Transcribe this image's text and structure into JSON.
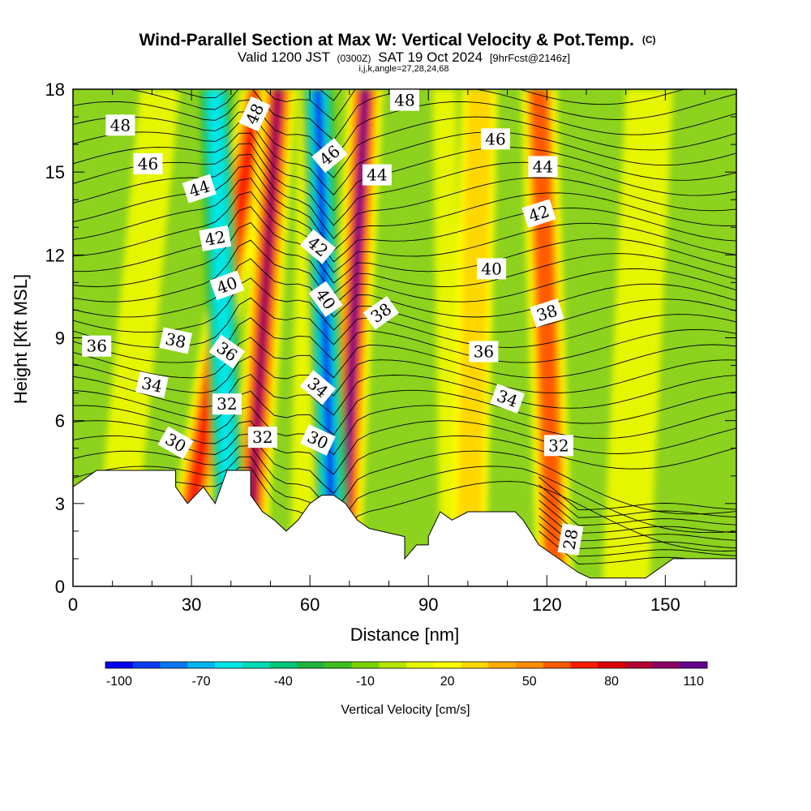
{
  "chart_data": {
    "type": "heatmap",
    "title": "Wind-Parallel Section at Max W: Vertical Velocity & Pot.Temp.",
    "title_mark": "(C)",
    "subtitle_parts": [
      "Valid 1200 JST",
      "(0300Z)",
      "SAT 19 Oct 2024",
      "[9hrFcst@2146z]"
    ],
    "subtitle2": "i,j,k,angle=27,28,24,68",
    "xlabel": "Distance [nm]",
    "ylabel": "Height [Kft MSL]",
    "xlim": [
      0,
      168
    ],
    "ylim": [
      0,
      18
    ],
    "xticks": [
      0,
      30,
      60,
      90,
      120,
      150
    ],
    "yticks": [
      0,
      3,
      6,
      9,
      12,
      15,
      18
    ],
    "colorbar_label": "Vertical Velocity [cm/s]",
    "colorbar_ticks": [
      "-100",
      "-70",
      "-40",
      "-10",
      "20",
      "50",
      "80",
      "110"
    ],
    "colorbar_colors": [
      "#0000ee",
      "#0a3cf5",
      "#0a78f0",
      "#00b4f0",
      "#00e6e6",
      "#00dcb4",
      "#00c878",
      "#1eb43c",
      "#3cbe1e",
      "#78d200",
      "#b4e600",
      "#e6f500",
      "#ffff00",
      "#ffd700",
      "#ffaa00",
      "#ff8c00",
      "#ff5a00",
      "#ff1e00",
      "#dc0000",
      "#b40032",
      "#8c0064",
      "#64008c"
    ],
    "updraft_cores": [
      {
        "x_low": 27,
        "x_high": 47,
        "w_max": 70
      },
      {
        "x_low": 44,
        "x_high": 52,
        "w_max": 100
      },
      {
        "x_low": 68,
        "x_high": 74,
        "w_max": 110
      },
      {
        "x_low": 100,
        "x_high": 103,
        "w_max": 30
      },
      {
        "x_low": 122,
        "x_high": 118,
        "w_max": 55
      }
    ],
    "downdraft_cores": [
      {
        "x_low": 40,
        "x_high": 36,
        "w_min": -60
      },
      {
        "x_low": 66,
        "x_high": 62,
        "w_min": -100
      }
    ],
    "terrain_kft": [
      [
        0,
        3.6
      ],
      [
        3,
        3.9
      ],
      [
        6,
        4.2
      ],
      [
        26,
        4.2
      ],
      [
        26,
        3.6
      ],
      [
        29,
        3.0
      ],
      [
        33,
        3.6
      ],
      [
        36,
        3.0
      ],
      [
        39,
        4.2
      ],
      [
        45,
        4.2
      ],
      [
        45,
        3.3
      ],
      [
        48,
        2.7
      ],
      [
        51,
        2.4
      ],
      [
        54,
        2.0
      ],
      [
        57,
        2.4
      ],
      [
        60,
        3.0
      ],
      [
        63,
        3.3
      ],
      [
        66,
        3.3
      ],
      [
        69,
        3.0
      ],
      [
        72,
        2.4
      ],
      [
        75,
        2.1
      ],
      [
        84,
        1.8
      ],
      [
        84,
        1.0
      ],
      [
        87,
        1.5
      ],
      [
        90,
        1.5
      ],
      [
        90,
        1.8
      ],
      [
        93,
        2.7
      ],
      [
        96,
        2.4
      ],
      [
        100,
        2.7
      ],
      [
        112,
        2.7
      ],
      [
        114,
        2.4
      ],
      [
        118,
        1.5
      ],
      [
        121,
        1.2
      ],
      [
        123,
        1.0
      ],
      [
        128,
        0.5
      ],
      [
        131,
        0.3
      ],
      [
        145,
        0.3
      ],
      [
        152,
        1.0
      ],
      [
        160,
        1.0
      ],
      [
        168,
        1.0
      ]
    ],
    "theta_labels": [
      {
        "text": "48",
        "x": 12,
        "y": 16.7,
        "angle": 0
      },
      {
        "text": "46",
        "x": 19,
        "y": 15.3,
        "angle": 0
      },
      {
        "text": "44",
        "x": 32,
        "y": 14.4,
        "angle": -18
      },
      {
        "text": "42",
        "x": 36,
        "y": 12.6,
        "angle": -10
      },
      {
        "text": "40",
        "x": 39,
        "y": 10.9,
        "angle": -20
      },
      {
        "text": "38",
        "x": 26,
        "y": 8.9,
        "angle": 12
      },
      {
        "text": "36",
        "x": 6,
        "y": 8.7,
        "angle": 0
      },
      {
        "text": "36",
        "x": 39,
        "y": 8.5,
        "angle": 35
      },
      {
        "text": "34",
        "x": 20,
        "y": 7.3,
        "angle": 12
      },
      {
        "text": "32",
        "x": 39,
        "y": 6.6,
        "angle": 0
      },
      {
        "text": "30",
        "x": 26,
        "y": 5.2,
        "angle": 30
      },
      {
        "text": "32",
        "x": 48,
        "y": 5.4,
        "angle": 0
      },
      {
        "text": "30",
        "x": 62,
        "y": 5.3,
        "angle": 25
      },
      {
        "text": "34",
        "x": 62,
        "y": 7.2,
        "angle": 40
      },
      {
        "text": "40",
        "x": 64,
        "y": 10.4,
        "angle": 55
      },
      {
        "text": "42",
        "x": 62,
        "y": 12.3,
        "angle": 40
      },
      {
        "text": "46",
        "x": 65,
        "y": 15.6,
        "angle": -40
      },
      {
        "text": "48",
        "x": 46,
        "y": 17.1,
        "angle": -65
      },
      {
        "text": "44",
        "x": 77,
        "y": 14.9,
        "angle": 0
      },
      {
        "text": "38",
        "x": 78,
        "y": 9.9,
        "angle": -35
      },
      {
        "text": "48",
        "x": 84,
        "y": 17.6,
        "angle": 0
      },
      {
        "text": "46",
        "x": 107,
        "y": 16.2,
        "angle": 0
      },
      {
        "text": "44",
        "x": 119,
        "y": 15.2,
        "angle": 0
      },
      {
        "text": "42",
        "x": 118,
        "y": 13.5,
        "angle": -18
      },
      {
        "text": "40",
        "x": 106,
        "y": 11.5,
        "angle": 0
      },
      {
        "text": "38",
        "x": 120,
        "y": 9.9,
        "angle": -18
      },
      {
        "text": "36",
        "x": 104,
        "y": 8.5,
        "angle": 0
      },
      {
        "text": "34",
        "x": 110,
        "y": 6.8,
        "angle": 20
      },
      {
        "text": "32",
        "x": 123,
        "y": 5.1,
        "angle": 0
      },
      {
        "text": "28",
        "x": 126,
        "y": 1.7,
        "angle": -80
      }
    ]
  }
}
